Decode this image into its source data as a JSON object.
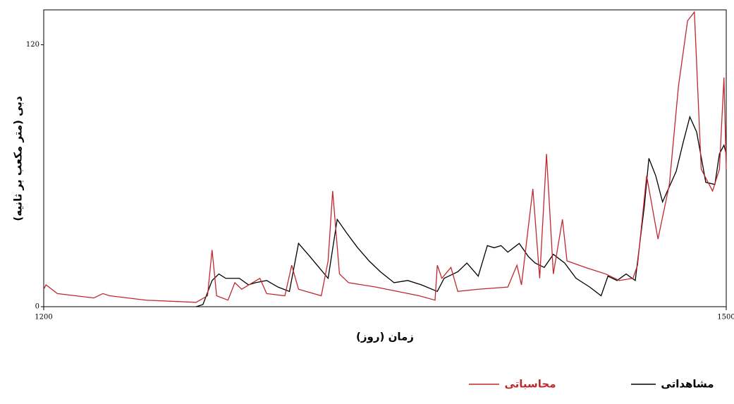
{
  "chart_data": {
    "type": "line",
    "ylabel": "دبی (متر مکعب بر ثانیه)",
    "xlabel": "زمان (روز)",
    "xlim": [
      1200,
      1500
    ],
    "xticks": [
      1200,
      1500
    ],
    "ylim": [
      0,
      136
    ],
    "yticks": [
      0,
      120
    ],
    "series": [
      {
        "name": "مشاهداتی",
        "color": "#000000",
        "x": [
          1267,
          1270,
          1274,
          1277,
          1280,
          1286,
          1290,
          1293,
          1298,
          1303,
          1308,
          1312,
          1317,
          1321,
          1325,
          1329,
          1333,
          1338,
          1343,
          1348,
          1354,
          1360,
          1366,
          1373,
          1376,
          1382,
          1386,
          1391,
          1395,
          1398,
          1401,
          1404,
          1409,
          1413,
          1416,
          1420,
          1424,
          1429,
          1434,
          1440,
          1445,
          1448,
          1452,
          1456,
          1460,
          1464,
          1466,
          1469,
          1472,
          1475,
          1478,
          1481,
          1484,
          1487,
          1491,
          1495,
          1497,
          1499,
          1500
        ],
        "values": [
          0,
          1,
          12,
          15,
          13,
          13,
          10,
          11,
          12,
          9,
          7,
          29,
          23,
          18,
          13,
          40,
          34,
          27,
          21,
          16,
          11,
          12,
          10,
          7,
          13,
          16,
          20,
          14,
          28,
          27,
          28,
          25,
          29,
          23,
          20,
          18,
          24,
          20,
          13,
          9,
          5,
          14,
          12,
          15,
          12,
          46,
          68,
          60,
          48,
          55,
          62,
          75,
          87,
          80,
          57,
          56,
          70,
          74,
          70
        ]
      },
      {
        "name": "محاسباتی",
        "color": "#c0282d",
        "x": [
          1200,
          1201,
          1206,
          1214,
          1222,
          1226,
          1229,
          1245,
          1267,
          1272,
          1274,
          1276,
          1281,
          1284,
          1287,
          1295,
          1298,
          1306,
          1309,
          1312,
          1322,
          1325,
          1327,
          1330,
          1334,
          1346,
          1365,
          1372,
          1373,
          1375,
          1379,
          1382,
          1391,
          1404,
          1408,
          1410,
          1415,
          1418,
          1421,
          1424,
          1428,
          1430,
          1438,
          1447,
          1453,
          1459,
          1461,
          1465,
          1470,
          1475,
          1479,
          1483,
          1486,
          1489,
          1494,
          1497,
          1499,
          1500
        ],
        "values": [
          8,
          10,
          6,
          5,
          4,
          6,
          5,
          3,
          2,
          5,
          26,
          5,
          3,
          11,
          8,
          13,
          6,
          5,
          19,
          8,
          5,
          21,
          53,
          15,
          11,
          9,
          5,
          3,
          19,
          13,
          18,
          7,
          8,
          9,
          19,
          10,
          54,
          13,
          70,
          15,
          40,
          21,
          18,
          15,
          12,
          13,
          19,
          60,
          31,
          56,
          101,
          131,
          135,
          63,
          53,
          63,
          105,
          63
        ]
      }
    ]
  }
}
